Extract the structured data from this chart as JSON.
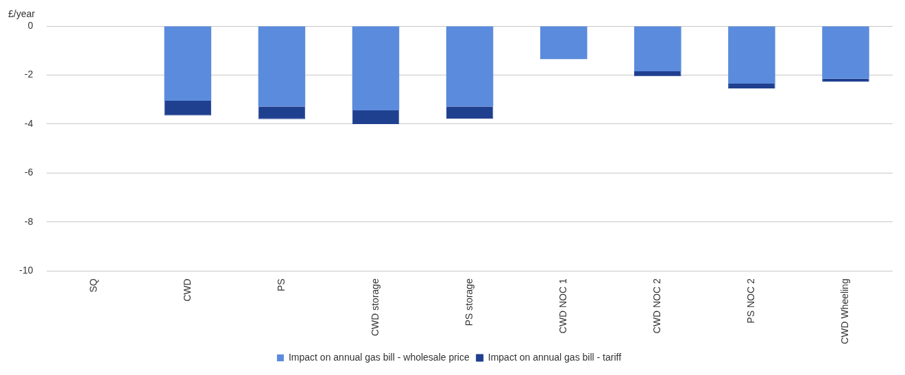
{
  "chart_data": {
    "type": "bar",
    "ylabel": "£/year",
    "categories": [
      "SQ",
      "CWD",
      "PS",
      "CWD storage",
      "PS storage",
      "CWD NOC 1",
      "CWD NOC 2",
      "PS NOC 2",
      "CWD Wheeling"
    ],
    "stacked": true,
    "series": [
      {
        "name": "Impact on annual gas bill - wholesale price",
        "color": "#5b8bdc",
        "values": [
          0,
          -3.05,
          -3.28,
          -3.44,
          -3.28,
          -1.35,
          -1.85,
          -2.35,
          -2.15
        ]
      },
      {
        "name": "Impact on annual gas bill - tariff",
        "color": "#1f3f8f",
        "values": [
          0,
          -0.6,
          -0.52,
          -0.56,
          -0.5,
          0,
          -0.2,
          -0.2,
          -0.12
        ]
      }
    ],
    "ylim": [
      -10,
      0
    ],
    "yticks": [
      -10,
      -8,
      -6,
      -4,
      -2,
      0
    ],
    "grid": "y",
    "legend": "bottom"
  }
}
